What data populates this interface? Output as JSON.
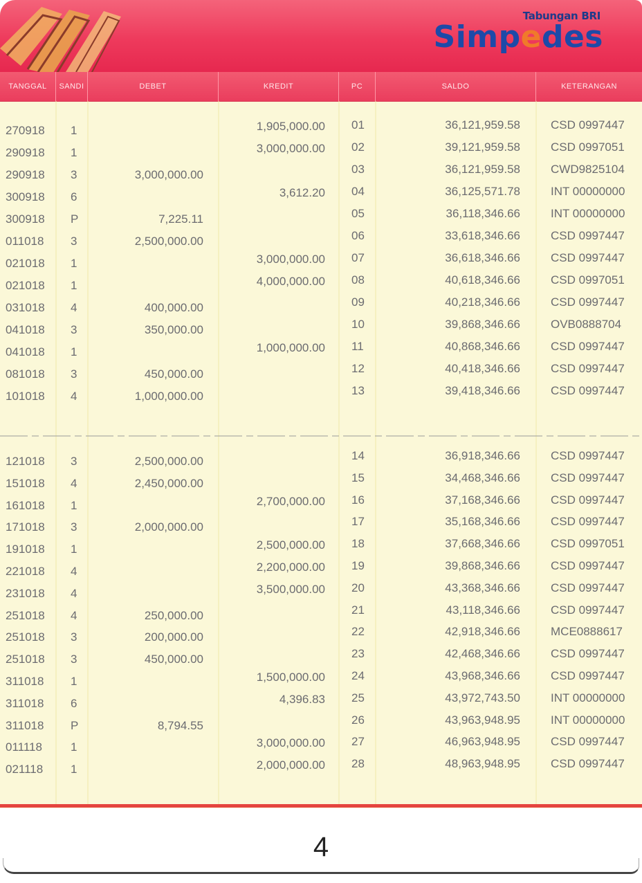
{
  "brand": {
    "sub": "Tabungan BRI",
    "main_a": "Simp",
    "main_b": "e",
    "main_c": "des"
  },
  "colors": {
    "header": "#ee3a5c",
    "paper": "#fbf8d8",
    "brand_blue": "#1d4aa8",
    "brand_orange": "#f07a2a",
    "text": "#6b6b70"
  },
  "columns": {
    "tanggal": "TANGGAL",
    "sandi": "SANDI",
    "debet": "DEBET",
    "kredit": "KREDIT",
    "pc": "PC",
    "saldo": "SALDO",
    "keterangan": "KETERANGAN"
  },
  "rows": [
    {
      "tgl": "270918",
      "sandi": "1",
      "debet": "",
      "kredit": "1,905,000.00",
      "pc": "01",
      "saldo": "36,121,959.58",
      "ket": "CSD 0997447"
    },
    {
      "tgl": "290918",
      "sandi": "1",
      "debet": "",
      "kredit": "3,000,000.00",
      "pc": "02",
      "saldo": "39,121,959.58",
      "ket": "CSD 0997051"
    },
    {
      "tgl": "290918",
      "sandi": "3",
      "debet": "3,000,000.00",
      "kredit": "",
      "pc": "03",
      "saldo": "36,121,959.58",
      "ket": "CWD9825104"
    },
    {
      "tgl": "300918",
      "sandi": "6",
      "debet": "",
      "kredit": "3,612.20",
      "pc": "04",
      "saldo": "36,125,571.78",
      "ket": "INT 00000000"
    },
    {
      "tgl": "300918",
      "sandi": "P",
      "debet": "7,225.11",
      "kredit": "",
      "pc": "05",
      "saldo": "36,118,346.66",
      "ket": "INT 00000000"
    },
    {
      "tgl": "011018",
      "sandi": "3",
      "debet": "2,500,000.00",
      "kredit": "",
      "pc": "06",
      "saldo": "33,618,346.66",
      "ket": "CSD 0997447"
    },
    {
      "tgl": "021018",
      "sandi": "1",
      "debet": "",
      "kredit": "3,000,000.00",
      "pc": "07",
      "saldo": "36,618,346.66",
      "ket": "CSD 0997447"
    },
    {
      "tgl": "021018",
      "sandi": "1",
      "debet": "",
      "kredit": "4,000,000.00",
      "pc": "08",
      "saldo": "40,618,346.66",
      "ket": "CSD 0997051"
    },
    {
      "tgl": "031018",
      "sandi": "4",
      "debet": "400,000.00",
      "kredit": "",
      "pc": "09",
      "saldo": "40,218,346.66",
      "ket": "CSD 0997447"
    },
    {
      "tgl": "041018",
      "sandi": "3",
      "debet": "350,000.00",
      "kredit": "",
      "pc": "10",
      "saldo": "39,868,346.66",
      "ket": "OVB0888704"
    },
    {
      "tgl": "041018",
      "sandi": "1",
      "debet": "",
      "kredit": "1,000,000.00",
      "pc": "11",
      "saldo": "40,868,346.66",
      "ket": "CSD 0997447"
    },
    {
      "tgl": "081018",
      "sandi": "3",
      "debet": "450,000.00",
      "kredit": "",
      "pc": "12",
      "saldo": "40,418,346.66",
      "ket": "CSD 0997447"
    },
    {
      "tgl": "101018",
      "sandi": "4",
      "debet": "1,000,000.00",
      "kredit": "",
      "pc": "13",
      "saldo": "39,418,346.66",
      "ket": "CSD 0997447"
    },
    {
      "tgl": "121018",
      "sandi": "3",
      "debet": "2,500,000.00",
      "kredit": "",
      "pc": "14",
      "saldo": "36,918,346.66",
      "ket": "CSD 0997447"
    },
    {
      "tgl": "151018",
      "sandi": "4",
      "debet": "2,450,000.00",
      "kredit": "",
      "pc": "15",
      "saldo": "34,468,346.66",
      "ket": "CSD 0997447"
    },
    {
      "tgl": "161018",
      "sandi": "1",
      "debet": "",
      "kredit": "2,700,000.00",
      "pc": "16",
      "saldo": "37,168,346.66",
      "ket": "CSD 0997447"
    },
    {
      "tgl": "171018",
      "sandi": "3",
      "debet": "2,000,000.00",
      "kredit": "",
      "pc": "17",
      "saldo": "35,168,346.66",
      "ket": "CSD 0997447"
    },
    {
      "tgl": "191018",
      "sandi": "1",
      "debet": "",
      "kredit": "2,500,000.00",
      "pc": "18",
      "saldo": "37,668,346.66",
      "ket": "CSD 0997051"
    },
    {
      "tgl": "221018",
      "sandi": "4",
      "debet": "",
      "kredit": "2,200,000.00",
      "pc": "19",
      "saldo": "39,868,346.66",
      "ket": "CSD 0997447"
    },
    {
      "tgl": "231018",
      "sandi": "4",
      "debet": "",
      "kredit": "3,500,000.00",
      "pc": "20",
      "saldo": "43,368,346.66",
      "ket": "CSD 0997447"
    },
    {
      "tgl": "251018",
      "sandi": "4",
      "debet": "250,000.00",
      "kredit": "",
      "pc": "21",
      "saldo": "43,118,346.66",
      "ket": "CSD 0997447"
    },
    {
      "tgl": "251018",
      "sandi": "3",
      "debet": "200,000.00",
      "kredit": "",
      "pc": "22",
      "saldo": "42,918,346.66",
      "ket": "MCE0888617"
    },
    {
      "tgl": "251018",
      "sandi": "3",
      "debet": "450,000.00",
      "kredit": "",
      "pc": "23",
      "saldo": "42,468,346.66",
      "ket": "CSD 0997447"
    },
    {
      "tgl": "311018",
      "sandi": "1",
      "debet": "",
      "kredit": "1,500,000.00",
      "pc": "24",
      "saldo": "43,968,346.66",
      "ket": "CSD 0997447"
    },
    {
      "tgl": "311018",
      "sandi": "6",
      "debet": "",
      "kredit": "4,396.83",
      "pc": "25",
      "saldo": "43,972,743.50",
      "ket": "INT 00000000"
    },
    {
      "tgl": "311018",
      "sandi": "P",
      "debet": "8,794.55",
      "kredit": "",
      "pc": "26",
      "saldo": "43,963,948.95",
      "ket": "INT 00000000"
    },
    {
      "tgl": "011118",
      "sandi": "1",
      "debet": "",
      "kredit": "3,000,000.00",
      "pc": "27",
      "saldo": "46,963,948.95",
      "ket": "CSD 0997447"
    },
    {
      "tgl": "021118",
      "sandi": "1",
      "debet": "",
      "kredit": "2,000,000.00",
      "pc": "28",
      "saldo": "48,963,948.95",
      "ket": "CSD 0997447"
    }
  ],
  "page_number": "4"
}
